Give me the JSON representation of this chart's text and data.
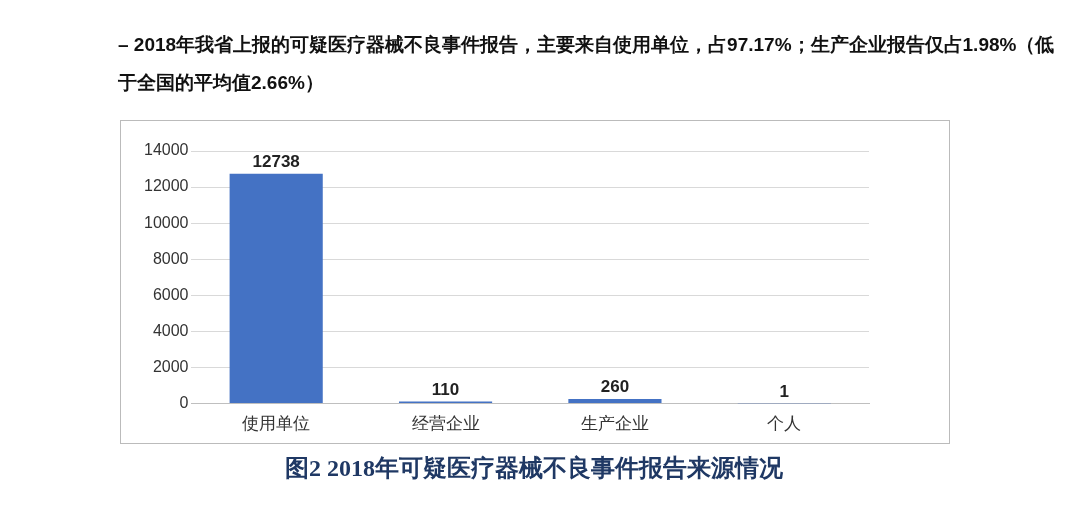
{
  "chart_data": {
    "type": "bar",
    "title": "– 2018年我省上报的可疑医疗器械不良事件报告，主要来自使用单位，占97.17%；生产企业报告仅占1.98%（低于全国的平均值2.66%）",
    "categories": [
      "使用单位",
      "经营企业",
      "生产企业",
      "个人"
    ],
    "values": [
      12738,
      110,
      260,
      1
    ],
    "color": "#4472c4",
    "ylim": [
      0,
      14000
    ],
    "yticks": [
      0,
      2000,
      4000,
      6000,
      8000,
      10000,
      12000,
      14000
    ],
    "grid": "y",
    "data_labels": true,
    "legend": false,
    "annotations": [
      "图2 2018年可疑医疗器械不良事件报告来源情况"
    ]
  }
}
